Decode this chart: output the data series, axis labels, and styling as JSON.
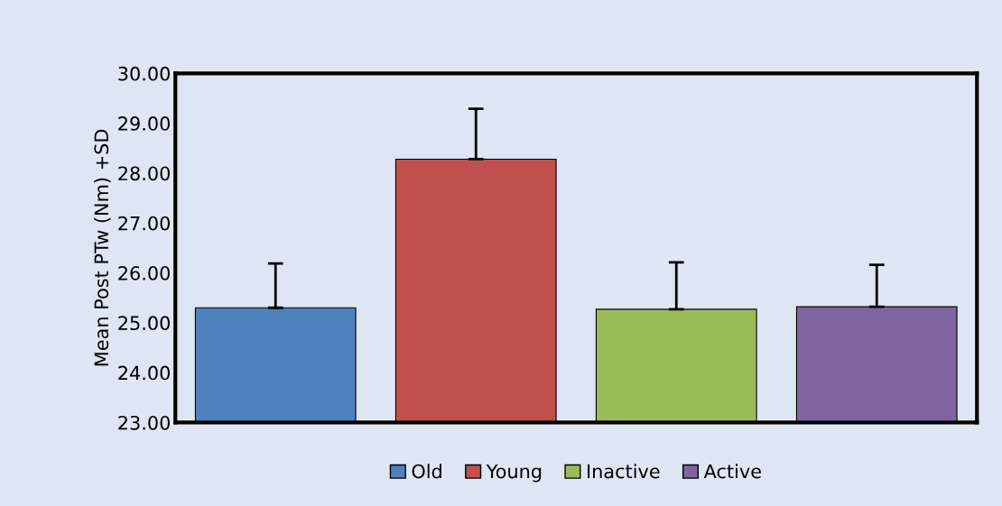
{
  "chart_data": {
    "type": "bar",
    "ylabel": "Mean Post PTw (Nm) +SD",
    "categories": [
      null,
      null,
      null,
      null
    ],
    "series": [
      {
        "name": "Old",
        "color": "#4f81bd",
        "values": [
          25.3,
          null,
          null,
          null
        ],
        "errors": [
          [
            25.3,
            26.19
          ],
          null,
          null,
          null
        ]
      },
      {
        "name": "Young",
        "color": "#c0504d",
        "values": [
          null,
          28.28,
          null,
          null
        ],
        "errors": [
          null,
          [
            28.28,
            29.29
          ],
          null,
          null
        ]
      },
      {
        "name": "Inactive",
        "color": "#9bbb59",
        "values": [
          null,
          null,
          25.27,
          null
        ],
        "errors": [
          null,
          null,
          [
            25.27,
            26.21
          ],
          null
        ]
      },
      {
        "name": "Active",
        "color": "#8064a2",
        "values": [
          null,
          null,
          null,
          25.32
        ],
        "errors": [
          null,
          null,
          null,
          [
            25.32,
            26.16
          ]
        ]
      }
    ],
    "ylim": [
      23,
      30
    ],
    "yticks": [
      {
        "value": 23,
        "label": "23.00"
      },
      {
        "value": 24,
        "label": "24.00"
      },
      {
        "value": 25,
        "label": "25.00"
      },
      {
        "value": 26,
        "label": "26.00"
      },
      {
        "value": 27,
        "label": "27.00"
      },
      {
        "value": 28,
        "label": "28.00"
      },
      {
        "value": 29,
        "label": "29.00"
      },
      {
        "value": 30,
        "label": "30.00"
      }
    ],
    "tick_labels": "y",
    "grid": false,
    "legend": "bottom"
  }
}
